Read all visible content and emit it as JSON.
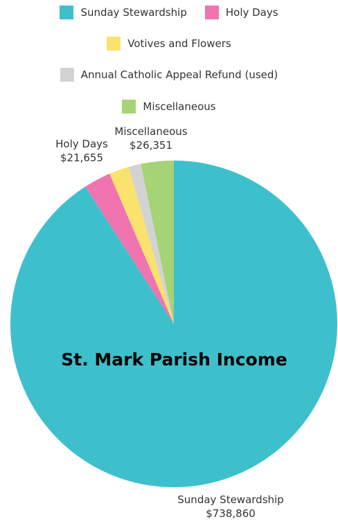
{
  "chart_data": {
    "type": "pie",
    "title": "St. Mark Parish Income",
    "legend_position": "top",
    "series": [
      {
        "name": "Sunday Stewardship",
        "value": 738860,
        "value_label": "$738,860",
        "color": "#3dc0cc"
      },
      {
        "name": "Holy Days",
        "value": 21655,
        "value_label": "$21,655",
        "color": "#f074b0"
      },
      {
        "name": "Votives and Flowers",
        "value": 16000,
        "color": "#fbe16e"
      },
      {
        "name": "Annual Catholic Appeal Refund (used)",
        "value": 10000,
        "color": "#d3d3d3"
      },
      {
        "name": "Miscellaneous",
        "value": 26351,
        "value_label": "$26,351",
        "color": "#a6d376"
      }
    ]
  }
}
